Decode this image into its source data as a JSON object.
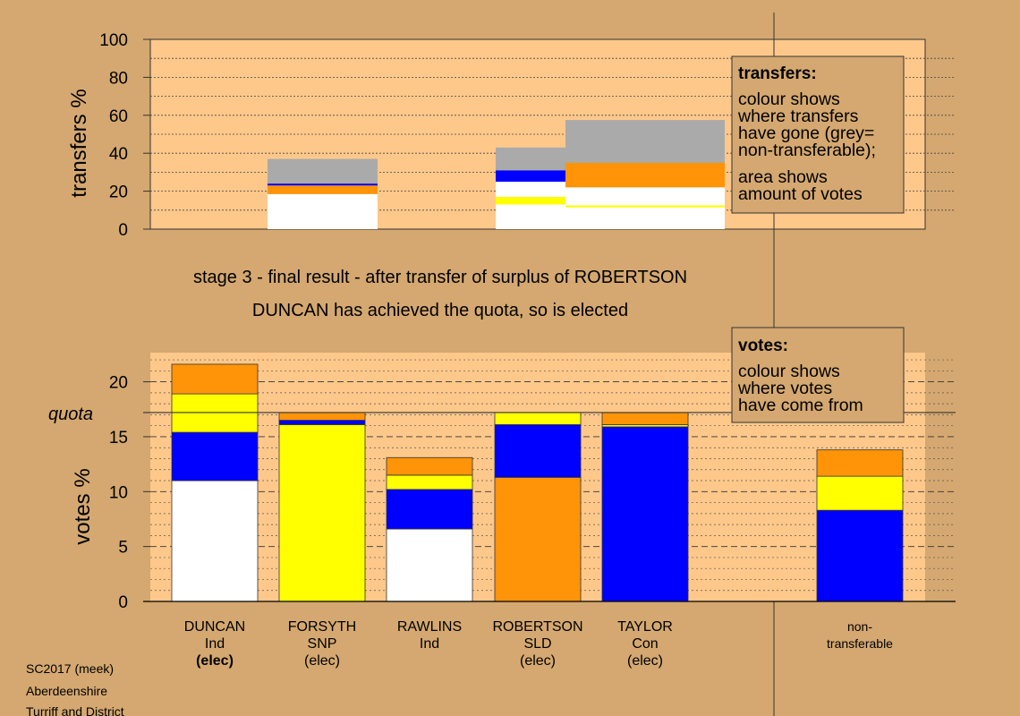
{
  "colors": {
    "background": "#d4a870",
    "plot_area": "#fdc88a",
    "Ind_DUNCAN": "#ffffff",
    "SNP": "#ffff00",
    "Ind_RAWLINS": "#ffffff",
    "SLD": "#ff9408",
    "Con": "#0000ff",
    "nontransferable": "#aaaaaa"
  },
  "info": {
    "stage_line": "stage 3 - final result - after transfer of surplus of ROBERTSON",
    "elected_line": "DUNCAN has achieved the quota, so is elected"
  },
  "legend_transfers": {
    "title": "transfers:",
    "lines": [
      "colour shows",
      "where transfers",
      "have gone (grey=",
      "non-transferable);",
      "area shows",
      "amount of votes"
    ]
  },
  "legend_votes": {
    "title": "votes:",
    "lines": [
      "colour shows",
      "where votes",
      "have come from"
    ]
  },
  "footer": {
    "lines": [
      "SC2017 (meek)",
      "Aberdeenshire",
      "Turriff and District"
    ]
  },
  "chart_data": [
    {
      "type": "bar",
      "title": "transfers",
      "ylabel": "transfers %",
      "ylim": [
        0,
        100
      ],
      "yticks": [
        0,
        20,
        40,
        60,
        80,
        100
      ],
      "grid": true,
      "segments_note": "stacked horizontal-width blocks by candidate column; values are percent of transferring votes",
      "blocks": [
        {
          "column": "FORSYTH",
          "color_key": "Ind_DUNCAN",
          "y0": 0,
          "y1": 18.5
        },
        {
          "column": "FORSYTH",
          "color_key": "SLD",
          "y0": 18.5,
          "y1": 23
        },
        {
          "column": "FORSYTH",
          "color_key": "Con",
          "y0": 23,
          "y1": 24
        },
        {
          "column": "FORSYTH",
          "color_key": "nontransferable",
          "y0": 24,
          "y1": 37
        },
        {
          "column": "ROBERTSON_A",
          "color_key": "Ind_DUNCAN",
          "y0": 0,
          "y1": 13
        },
        {
          "column": "ROBERTSON_A",
          "color_key": "SNP",
          "y0": 13,
          "y1": 17
        },
        {
          "column": "ROBERTSON_A",
          "color_key": "Ind_DUNCAN",
          "y0": 17,
          "y1": 25
        },
        {
          "column": "ROBERTSON_A",
          "color_key": "Con",
          "y0": 25,
          "y1": 31
        },
        {
          "column": "ROBERTSON_A",
          "color_key": "nontransferable",
          "y0": 31,
          "y1": 43
        },
        {
          "column": "ROBERTSON_B",
          "color_key": "Ind_DUNCAN",
          "y0": 0,
          "y1": 11.5
        },
        {
          "column": "ROBERTSON_B",
          "color_key": "SNP",
          "y0": 11.5,
          "y1": 12.5
        },
        {
          "column": "ROBERTSON_B",
          "color_key": "Ind_DUNCAN",
          "y0": 12.5,
          "y1": 22
        },
        {
          "column": "ROBERTSON_B",
          "color_key": "SLD",
          "y0": 22,
          "y1": 35
        },
        {
          "column": "ROBERTSON_B",
          "color_key": "nontransferable",
          "y0": 35,
          "y1": 57.5
        }
      ]
    },
    {
      "type": "bar",
      "title": "votes",
      "ylabel": "votes %",
      "ylim": [
        0,
        22.5
      ],
      "yticks": [
        0,
        5,
        10,
        15,
        20
      ],
      "quota": 17.2,
      "quota_label": "quota",
      "grid": true,
      "categories": [
        {
          "name": "DUNCAN",
          "party": "Ind",
          "status": "(elec)",
          "bold_status": true,
          "stack": [
            {
              "color_key": "Ind_DUNCAN",
              "value": 11.0
            },
            {
              "color_key": "Con",
              "value": 4.4
            },
            {
              "color_key": "SNP",
              "value": 3.5
            },
            {
              "color_key": "SLD",
              "value": 2.7
            }
          ]
        },
        {
          "name": "FORSYTH",
          "party": "SNP",
          "status": "(elec)",
          "bold_status": false,
          "stack": [
            {
              "color_key": "SNP",
              "value": 16.1
            },
            {
              "color_key": "Con",
              "value": 0.4
            },
            {
              "color_key": "SLD",
              "value": 0.7
            }
          ]
        },
        {
          "name": "RAWLINS",
          "party": "Ind",
          "status": "",
          "bold_status": false,
          "stack": [
            {
              "color_key": "Ind_DUNCAN",
              "value": 6.6
            },
            {
              "color_key": "Con",
              "value": 3.6
            },
            {
              "color_key": "SNP",
              "value": 1.3
            },
            {
              "color_key": "SLD",
              "value": 1.6
            }
          ]
        },
        {
          "name": "ROBERTSON",
          "party": "SLD",
          "status": "(elec)",
          "bold_status": false,
          "stack": [
            {
              "color_key": "SLD",
              "value": 11.3
            },
            {
              "color_key": "Con",
              "value": 4.8
            },
            {
              "color_key": "SNP",
              "value": 1.1
            }
          ]
        },
        {
          "name": "TAYLOR",
          "party": "Con",
          "status": "(elec)",
          "bold_status": false,
          "stack": [
            {
              "color_key": "Con",
              "value": 15.9
            },
            {
              "color_key": "SNP",
              "value": 0.2
            },
            {
              "color_key": "SLD",
              "value": 1.1
            }
          ]
        },
        {
          "name": "non-",
          "party": "transferable",
          "status": "",
          "bold_status": false,
          "stack": [
            {
              "color_key": "Con",
              "value": 8.3
            },
            {
              "color_key": "SNP",
              "value": 3.1
            },
            {
              "color_key": "SLD",
              "value": 2.4
            }
          ]
        }
      ]
    }
  ]
}
